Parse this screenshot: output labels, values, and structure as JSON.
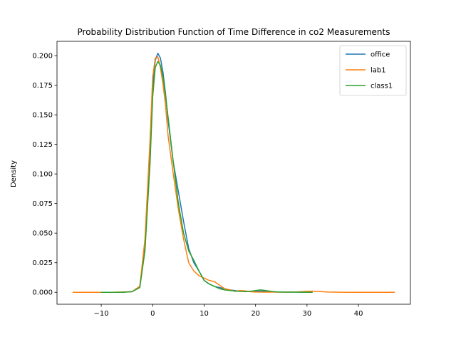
{
  "chart_data": {
    "type": "line",
    "title": "Probability Distribution Function of Time Difference in co2 Measurements",
    "xlabel": "",
    "ylabel": "Density",
    "xlim": [
      -18.6,
      50.1
    ],
    "ylim": [
      -0.0101,
      0.2121
    ],
    "xticks": [
      -10,
      0,
      10,
      20,
      30,
      40
    ],
    "yticks": [
      0.0,
      0.025,
      0.05,
      0.075,
      0.1,
      0.125,
      0.15,
      0.175,
      0.2
    ],
    "ytick_labels": [
      "0.000",
      "0.025",
      "0.050",
      "0.075",
      "0.100",
      "0.125",
      "0.150",
      "0.175",
      "0.200"
    ],
    "grid": false,
    "legend_position": "top-right",
    "series": [
      {
        "name": "office",
        "color": "#1f77b4",
        "x": [
          -10,
          -6,
          -4,
          -2.5,
          -1.5,
          -0.5,
          0,
          0.5,
          1,
          1.5,
          2,
          2.5,
          3,
          4,
          5,
          6,
          7,
          8,
          9,
          10,
          11,
          12,
          13,
          14,
          15,
          16,
          17,
          18,
          19,
          20,
          21,
          22,
          23,
          25,
          28,
          31
        ],
        "y": [
          0,
          0,
          0.0005,
          0.005,
          0.04,
          0.12,
          0.175,
          0.196,
          0.202,
          0.198,
          0.186,
          0.168,
          0.145,
          0.11,
          0.085,
          0.06,
          0.037,
          0.025,
          0.018,
          0.01,
          0.007,
          0.005,
          0.004,
          0.003,
          0.002,
          0.0015,
          0.001,
          0.0008,
          0.0008,
          0.001,
          0.001,
          0.0008,
          0.0005,
          0.0002,
          0.0001,
          0
        ]
      },
      {
        "name": "lab1",
        "color": "#ff7f0e",
        "x": [
          -15.5,
          -8,
          -4,
          -2.5,
          -1.5,
          -0.5,
          0,
          0.5,
          1,
          1.5,
          2,
          2.5,
          3,
          4,
          5,
          6,
          7,
          8,
          9,
          10,
          11,
          12,
          13,
          14,
          15,
          16,
          17,
          18,
          19,
          20,
          22,
          25,
          28,
          30,
          31,
          32,
          34,
          38,
          47
        ],
        "y": [
          0,
          0,
          0.0005,
          0.005,
          0.045,
          0.13,
          0.182,
          0.198,
          0.199,
          0.19,
          0.176,
          0.158,
          0.132,
          0.1,
          0.07,
          0.045,
          0.025,
          0.018,
          0.014,
          0.012,
          0.01,
          0.009,
          0.006,
          0.003,
          0.002,
          0.001,
          0.0015,
          0.0012,
          0.0005,
          0.0002,
          0.0001,
          0.0001,
          0.0003,
          0.0008,
          0.001,
          0.0008,
          0.0002,
          0,
          0
        ]
      },
      {
        "name": "class1",
        "color": "#2ca02c",
        "x": [
          -10,
          -6,
          -4,
          -2.5,
          -1.5,
          -0.5,
          0,
          0.5,
          1,
          1.5,
          2,
          2.5,
          3,
          4,
          5,
          6,
          7,
          8,
          9,
          10,
          11,
          12,
          13,
          14,
          15,
          16,
          17,
          18,
          19,
          20,
          21,
          22,
          23,
          24,
          26,
          28,
          31
        ],
        "y": [
          0,
          0,
          0.0005,
          0.004,
          0.035,
          0.11,
          0.165,
          0.19,
          0.195,
          0.192,
          0.182,
          0.166,
          0.148,
          0.11,
          0.075,
          0.05,
          0.035,
          0.027,
          0.018,
          0.01,
          0.007,
          0.005,
          0.003,
          0.002,
          0.0015,
          0.001,
          0.0008,
          0.0005,
          0.0008,
          0.0015,
          0.002,
          0.0015,
          0.0008,
          0.0003,
          0.0001,
          0.0001,
          0
        ]
      }
    ]
  }
}
